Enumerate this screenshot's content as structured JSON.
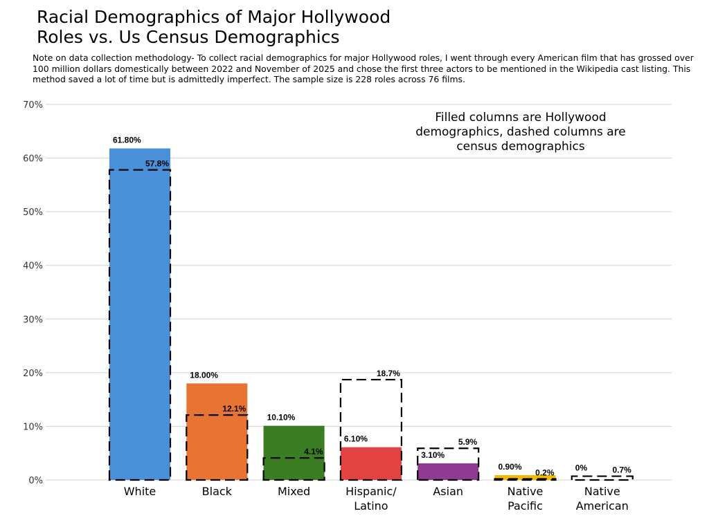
{
  "chart_data": {
    "type": "bar",
    "title": "Racial Demographics of Major Hollywood Roles vs. Us Census Demographics",
    "subtitle": "Note on data collection methodology- To collect racial demographics for major Hollywood roles, I went through every American film that has grossed over 100 million dollars domestically between 2022 and November of 2025 and chose the first three actors to be mentioned in the Wikipedia cast listing.  This method saved a lot of time but is admittedly imperfect. The sample size is 228 roles across 76 films.",
    "annotation": [
      "Filled columns are Hollywood",
      "demographics, dashed columns are",
      "census demographics"
    ],
    "categories": [
      "White",
      "Black",
      "Mixed",
      "Hispanic/ Latino",
      "Asian",
      "Native Pacific",
      "Native American"
    ],
    "category_lines": [
      [
        "White"
      ],
      [
        "Black"
      ],
      [
        "Mixed"
      ],
      [
        "Hispanic/",
        "Latino"
      ],
      [
        "Asian"
      ],
      [
        "Native",
        "Pacific"
      ],
      [
        "Native",
        "American"
      ]
    ],
    "series": [
      {
        "values": [
          61.8,
          18.0,
          10.1,
          6.1,
          3.1,
          0.9,
          0
        ],
        "labels": [
          "61.80%",
          "18.00%",
          "10.10%",
          "6.10%",
          "3.10%",
          "0.90%",
          "0%"
        ],
        "style": "filled"
      },
      {
        "values": [
          57.8,
          12.1,
          4.1,
          18.7,
          5.9,
          0.2,
          0.7
        ],
        "labels": [
          "57.8%",
          "12.1%",
          "4.1%",
          "18.7%",
          "5.9%",
          "0.2%",
          "0.7%"
        ],
        "style": "dashed"
      }
    ],
    "colors": [
      "#4a90d9",
      "#e87434",
      "#3a7d22",
      "#e34242",
      "#8e3b91",
      "#f5b800",
      "#888888"
    ],
    "ylim": [
      0,
      70
    ],
    "yticks": [
      0,
      10,
      20,
      30,
      40,
      50,
      60,
      70
    ],
    "ytick_labels": [
      "0%",
      "10%",
      "20%",
      "30%",
      "40%",
      "50%",
      "60%",
      "70%"
    ],
    "xlabel": "",
    "ylabel": "",
    "grid": true
  }
}
